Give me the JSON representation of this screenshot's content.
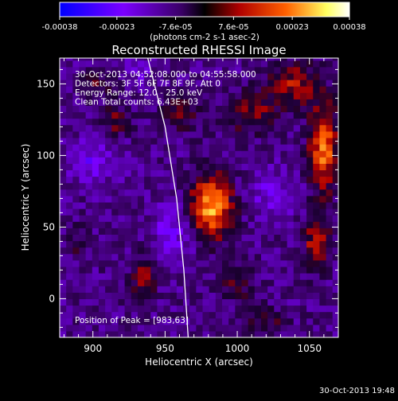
{
  "chart_data": {
    "type": "heatmap",
    "title": "Reconstructed RHESSI Image",
    "xlabel": "Heliocentric X (arcsec)",
    "ylabel": "Heliocentric Y (arcsec)",
    "xlim": [
      877,
      1070
    ],
    "ylim": [
      -27,
      168
    ],
    "xticks": [
      900,
      950,
      1000,
      1050
    ],
    "yticks": [
      0,
      50,
      100,
      150
    ],
    "colorbar": {
      "ticks": [
        -0.00038,
        -0.00023,
        -7.6e-05,
        7.6e-05,
        0.00023,
        0.00038
      ],
      "tick_labels": [
        "-0.00038",
        "-0.00023",
        "-7.6e-05",
        "7.6e-05",
        "0.00023",
        "0.00038"
      ],
      "unit_text": "(photons cm-2 s-1 asec-2)",
      "colors": [
        "#0000ff",
        "#7b00ff",
        "#3a0066",
        "#000000",
        "#b00000",
        "#ff6000",
        "#ffff60",
        "#ffffff"
      ]
    },
    "annotations": [
      "30-Oct-2013 04:52:08.000 to 04:55:58.000",
      "Detectors: 3F 5F 6F 7F 8F 9F, Att 0",
      "Energy Range: 12.0 - 25.0 keV",
      "Clean    Total counts: 6.43E+03"
    ],
    "peak_label": "Position of Peak = [983,63]",
    "peak": {
      "x": 983,
      "y": 63
    },
    "limb_curve": [
      [
        938,
        168
      ],
      [
        950,
        120
      ],
      [
        958,
        70
      ],
      [
        963,
        20
      ],
      [
        966,
        -27
      ]
    ],
    "sources": [
      {
        "x": 982,
        "y": 65,
        "amp": 0.00036,
        "sx": 10,
        "sy": 15
      },
      {
        "x": 1060,
        "y": 105,
        "amp": 0.0003,
        "sx": 7,
        "sy": 20
      },
      {
        "x": 1055,
        "y": 40,
        "amp": 0.0002,
        "sx": 6,
        "sy": 14
      },
      {
        "x": 1040,
        "y": 150,
        "amp": 0.00018,
        "sx": 12,
        "sy": 10
      },
      {
        "x": 1010,
        "y": 130,
        "amp": 0.00015,
        "sx": 12,
        "sy": 10
      },
      {
        "x": 935,
        "y": 15,
        "amp": 0.00017,
        "sx": 6,
        "sy": 10
      },
      {
        "x": 960,
        "y": 130,
        "amp": 0.00012,
        "sx": 10,
        "sy": 8
      },
      {
        "x": 915,
        "y": 125,
        "amp": 0.00012,
        "sx": 8,
        "sy": 8
      },
      {
        "x": 905,
        "y": 150,
        "amp": 0.0001,
        "sx": 8,
        "sy": 6
      },
      {
        "x": 1000,
        "y": 10,
        "amp": 0.00011,
        "sx": 8,
        "sy": 8
      },
      {
        "x": 1020,
        "y": -15,
        "amp": 0.0001,
        "sx": 10,
        "sy": 6
      },
      {
        "x": 890,
        "y": 40,
        "amp": 8e-05,
        "sx": 6,
        "sy": 8
      },
      {
        "x": 900,
        "y": 95,
        "amp": -0.00012,
        "sx": 12,
        "sy": 10
      },
      {
        "x": 955,
        "y": 45,
        "amp": -0.0001,
        "sx": 10,
        "sy": 15
      },
      {
        "x": 1025,
        "y": 75,
        "amp": -9e-05,
        "sx": 12,
        "sy": 12
      },
      {
        "x": 930,
        "y": 160,
        "amp": -8e-05,
        "sx": 8,
        "sy": 6
      }
    ]
  },
  "timestamp": "30-Oct-2013 19:48"
}
